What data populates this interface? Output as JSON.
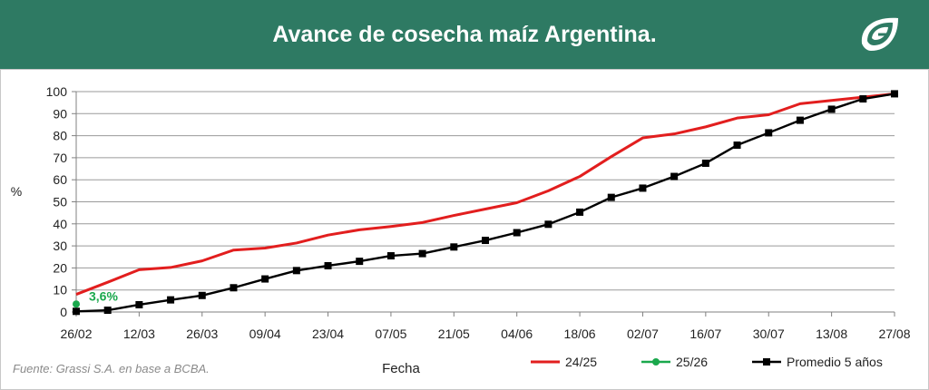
{
  "header": {
    "title": "Avance de cosecha maíz Argentina.",
    "background_color": "#2e7a63",
    "logo_icon": "grassi-leaf-icon"
  },
  "source_note": "Fuente: Grassi S.A. en base a BCBA.",
  "chart_data": {
    "type": "line",
    "title": "Avance de cosecha maíz Argentina.",
    "xlabel": "Fecha",
    "ylabel": "%",
    "ylim": [
      0,
      100
    ],
    "yticks": [
      0,
      10,
      20,
      30,
      40,
      50,
      60,
      70,
      80,
      90,
      100
    ],
    "x_tick_labels": [
      "26/02",
      "12/03",
      "26/03",
      "09/04",
      "23/04",
      "07/05",
      "21/05",
      "04/06",
      "18/06",
      "02/07",
      "16/07",
      "30/07",
      "13/08",
      "27/08"
    ],
    "grid": true,
    "legend_position": "bottom-right",
    "series": [
      {
        "name": "24/25",
        "color": "#e21e1e",
        "marker": "none",
        "values": [
          8,
          13.5,
          19.2,
          20.2,
          23.2,
          28.1,
          29,
          31.3,
          34.9,
          37.3,
          38.8,
          40.6,
          43.8,
          46.7,
          49.6,
          55,
          61.5,
          70.5,
          79,
          80.8,
          84,
          88,
          89.5,
          94.5,
          96,
          97.5,
          99
        ]
      },
      {
        "name": "25/26",
        "color": "#1aa84c",
        "marker": "circle",
        "values": [
          3.6
        ],
        "data_label": "3,6%"
      },
      {
        "name": "Promedio 5 años",
        "color": "#000000",
        "marker": "square",
        "values": [
          0.3,
          0.8,
          3.3,
          5.5,
          7.5,
          11,
          15,
          18.8,
          21,
          23,
          25.5,
          26.5,
          29.5,
          32.5,
          36,
          39.8,
          45.3,
          52,
          56.2,
          61.5,
          67.5,
          75.7,
          81.3,
          87,
          92,
          96.7,
          99
        ]
      }
    ]
  }
}
